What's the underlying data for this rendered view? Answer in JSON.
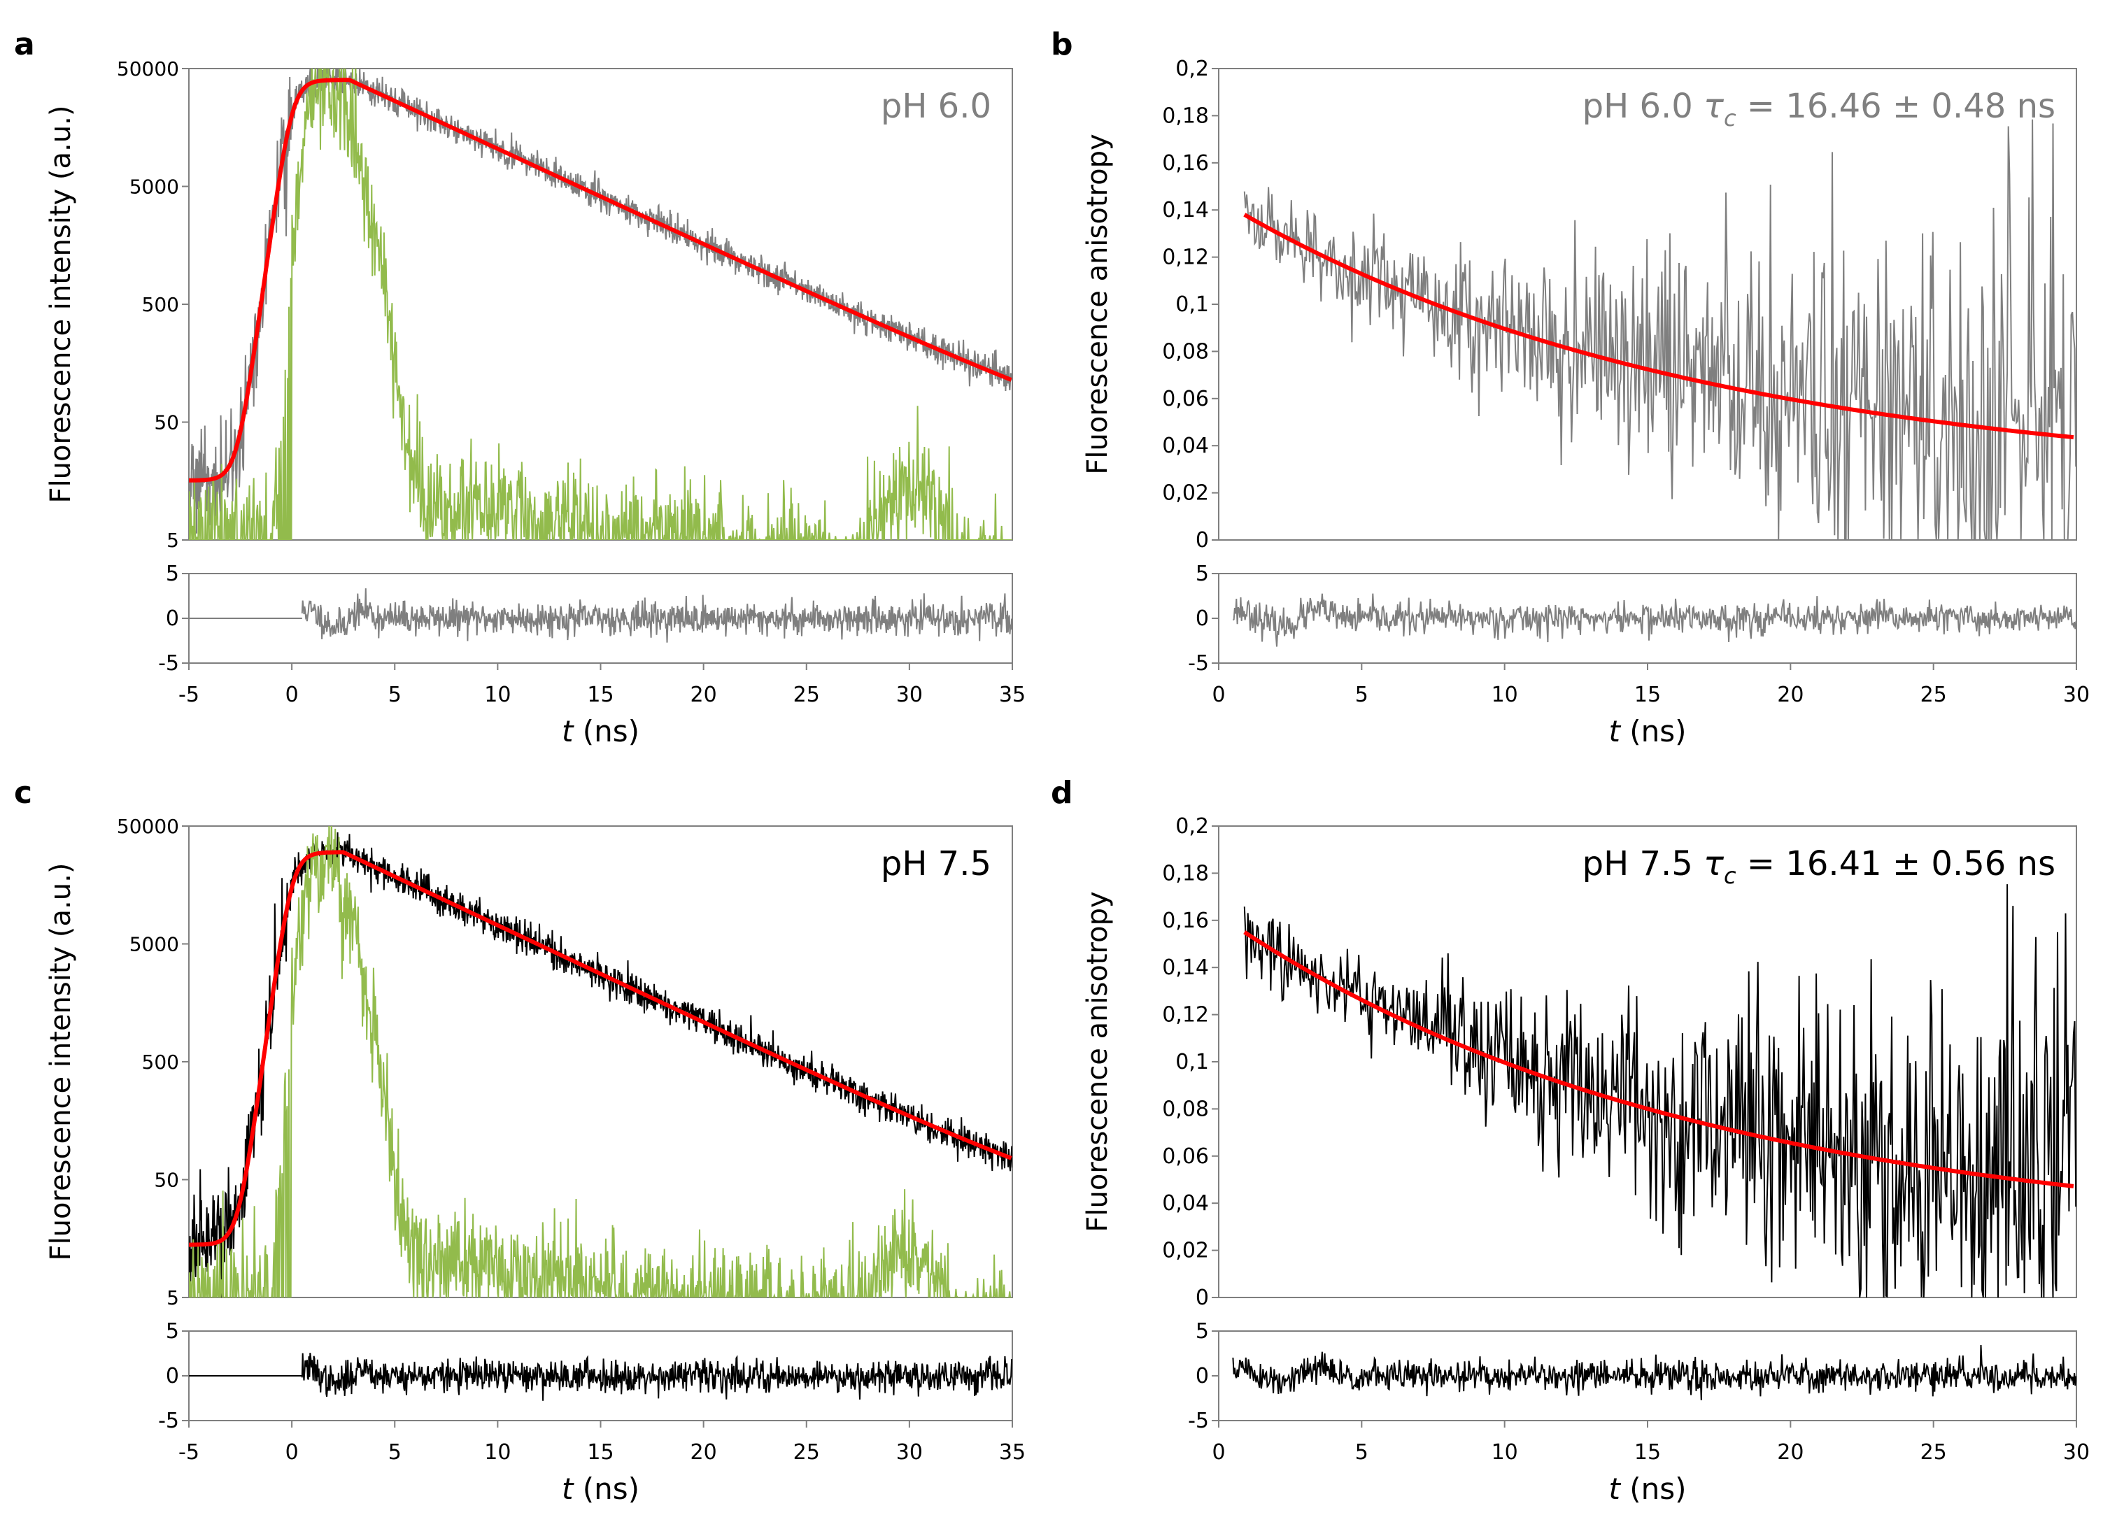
{
  "colors": {
    "fit": "#ff0000",
    "irf": "#92bb4c",
    "data_gray": "#7f7f7f",
    "data_black": "#000000",
    "axis": "#7f7f7f",
    "text": "#000000"
  },
  "chart_data": [
    {
      "id": "a",
      "panel_label": "a",
      "type": "line",
      "title": "pH 6.0",
      "title_color": "#808080",
      "xlabel_italic": "t",
      "xlabel_rest": " (ns)",
      "ylabel": "Fluorescence intensity (a.u.)",
      "yscale": "log",
      "xlim": [
        -5,
        35
      ],
      "ylim": [
        5,
        50000
      ],
      "xticks": [
        "-5",
        "0",
        "5",
        "10",
        "15",
        "20",
        "25",
        "30",
        "35"
      ],
      "yticks": [
        "5",
        "50",
        "500",
        "5000",
        "50000"
      ],
      "residual_ylim": [
        -5,
        5
      ],
      "residual_yticks": [
        "5",
        "0",
        "-5"
      ],
      "series": [
        {
          "name": "decay data",
          "color": "#7f7f7f",
          "rise": 0.0,
          "peak": 2.8,
          "amp": 40000,
          "tau": 5.35,
          "base": 16,
          "noise": 0.14
        },
        {
          "name": "IRF",
          "color": "#92bb4c",
          "center": 1.5,
          "amp": 38000,
          "base": 6,
          "bump_center": 30,
          "bump_amp": 12
        },
        {
          "name": "fit",
          "color": "#ff0000",
          "rise": 0.0,
          "peak": 2.8,
          "amp": 40000,
          "tau": 5.35,
          "base": 16
        }
      ],
      "residual_color": "#7f7f7f",
      "residual_start": 0.5,
      "residual_seed": 11
    },
    {
      "id": "b",
      "panel_label": "b",
      "type": "line",
      "title": "pH 6.0",
      "title_color": "#808080",
      "tau_label": "τ",
      "tau_sub": "c",
      "tau_value": " = 16.46 ± 0.48 ns",
      "xlabel_italic": "t",
      "xlabel_rest": " (ns)",
      "ylabel": "Fluorescence anisotropy",
      "yscale": "linear",
      "xlim": [
        0,
        30
      ],
      "ylim": [
        0,
        0.2
      ],
      "xticks": [
        "0",
        "5",
        "10",
        "15",
        "20",
        "25",
        "30"
      ],
      "yticks": [
        "0",
        "0,02",
        "0,04",
        "0,06",
        "0,08",
        "0,1",
        "0,12",
        "0,14",
        "0,16",
        "0,18",
        "0,2"
      ],
      "residual_ylim": [
        -5,
        5
      ],
      "residual_yticks": [
        "5",
        "0",
        "-5"
      ],
      "series": [
        {
          "name": "anisotropy data",
          "color": "#7f7f7f",
          "r0": 0.114,
          "tau_c": 16.46,
          "rinf": 0.024,
          "t_start": 0.9,
          "noise_start": 0.008,
          "noise_end": 0.055
        },
        {
          "name": "fit",
          "color": "#ff0000",
          "r0": 0.114,
          "tau_c": 16.46,
          "rinf": 0.024,
          "t_start": 0.9
        }
      ],
      "residual_color": "#7f7f7f",
      "residual_start": 0.5,
      "residual_seed": 23
    },
    {
      "id": "c",
      "panel_label": "c",
      "type": "line",
      "title": "pH 7.5",
      "title_color": "#000000",
      "xlabel_italic": "t",
      "xlabel_rest": " (ns)",
      "ylabel": "Fluorescence intensity (a.u.)",
      "yscale": "log",
      "xlim": [
        -5,
        35
      ],
      "ylim": [
        5,
        50000
      ],
      "xticks": [
        "-5",
        "0",
        "5",
        "10",
        "15",
        "20",
        "25",
        "30",
        "35"
      ],
      "yticks": [
        "5",
        "50",
        "500",
        "5000",
        "50000"
      ],
      "residual_ylim": [
        -5,
        5
      ],
      "residual_yticks": [
        "5",
        "0",
        "-5"
      ],
      "series": [
        {
          "name": "decay data",
          "color": "#000000",
          "rise": 0.0,
          "peak": 2.5,
          "amp": 30000,
          "tau": 5.25,
          "base": 14,
          "noise": 0.16
        },
        {
          "name": "IRF",
          "color": "#92bb4c",
          "center": 1.3,
          "amp": 24000,
          "base": 6,
          "bump_center": 30,
          "bump_amp": 10
        },
        {
          "name": "fit",
          "color": "#ff0000",
          "rise": 0.0,
          "peak": 2.5,
          "amp": 30000,
          "tau": 5.25,
          "base": 14
        }
      ],
      "residual_color": "#000000",
      "residual_start": 0.5,
      "residual_seed": 37
    },
    {
      "id": "d",
      "panel_label": "d",
      "type": "line",
      "title": "pH 7.5",
      "title_color": "#000000",
      "tau_label": "τ",
      "tau_sub": "c",
      "tau_value": " = 16.41 ± 0.56 ns",
      "xlabel_italic": "t",
      "xlabel_rest": " (ns)",
      "ylabel": "Fluorescence anisotropy",
      "yscale": "linear",
      "xlim": [
        0,
        30
      ],
      "ylim": [
        0,
        0.2
      ],
      "xticks": [
        "0",
        "5",
        "10",
        "15",
        "20",
        "25",
        "30"
      ],
      "yticks": [
        "0",
        "0,02",
        "0,04",
        "0,06",
        "0,08",
        "0,1",
        "0,12",
        "0,14",
        "0,16",
        "0,18",
        "0,2"
      ],
      "residual_ylim": [
        -5,
        5
      ],
      "residual_yticks": [
        "5",
        "0",
        "-5"
      ],
      "series": [
        {
          "name": "anisotropy data",
          "color": "#000000",
          "r0": 0.13,
          "tau_c": 16.41,
          "rinf": 0.025,
          "t_start": 0.9,
          "noise_start": 0.007,
          "noise_end": 0.05
        },
        {
          "name": "fit",
          "color": "#ff0000",
          "r0": 0.13,
          "tau_c": 16.41,
          "rinf": 0.025,
          "t_start": 0.9
        }
      ],
      "residual_color": "#000000",
      "residual_start": 0.5,
      "residual_seed": 51
    }
  ]
}
